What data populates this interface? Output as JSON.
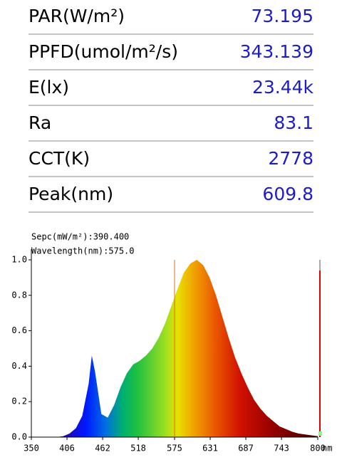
{
  "table": {
    "rows": [
      [
        "PAR(W/m²)",
        "73.195"
      ],
      [
        "PPFD(umol/m²/s)",
        "343.139"
      ],
      [
        "E(lx)",
        "23.44k"
      ],
      [
        "Ra",
        "83.1"
      ],
      [
        "CCT(K)",
        "2778"
      ],
      [
        "Peak(nm)",
        "609.8"
      ]
    ]
  },
  "chart_data": {
    "type": "area",
    "annotations": [
      "Sepc(mW/m²):390.400",
      "Wavelength(nm):575.0"
    ],
    "cursor_x": 575,
    "xlabel": "nm",
    "x": [
      350,
      360,
      370,
      380,
      390,
      400,
      410,
      420,
      430,
      440,
      445,
      450,
      460,
      470,
      480,
      490,
      500,
      510,
      520,
      530,
      540,
      550,
      560,
      570,
      580,
      590,
      600,
      610,
      620,
      630,
      640,
      650,
      660,
      670,
      680,
      690,
      700,
      710,
      720,
      730,
      740,
      750,
      760,
      770,
      780,
      790,
      800
    ],
    "values": [
      0,
      0,
      0,
      0,
      0,
      0.005,
      0.02,
      0.05,
      0.12,
      0.3,
      0.46,
      0.37,
      0.13,
      0.11,
      0.18,
      0.28,
      0.36,
      0.41,
      0.43,
      0.46,
      0.5,
      0.56,
      0.64,
      0.74,
      0.84,
      0.93,
      0.98,
      1.0,
      0.97,
      0.9,
      0.8,
      0.68,
      0.56,
      0.45,
      0.36,
      0.28,
      0.21,
      0.16,
      0.12,
      0.09,
      0.06,
      0.045,
      0.03,
      0.02,
      0.015,
      0.01,
      0.005
    ],
    "xlim": [
      350,
      800
    ],
    "xticks": [
      350,
      406,
      462,
      518,
      575,
      631,
      687,
      743,
      800
    ],
    "ylim": [
      0,
      1
    ],
    "yticks": [
      {
        "value": 0,
        "label": "0.0"
      },
      0.2,
      0.4,
      0.6,
      0.8,
      {
        "value": 1,
        "label": "1.0"
      }
    ]
  }
}
